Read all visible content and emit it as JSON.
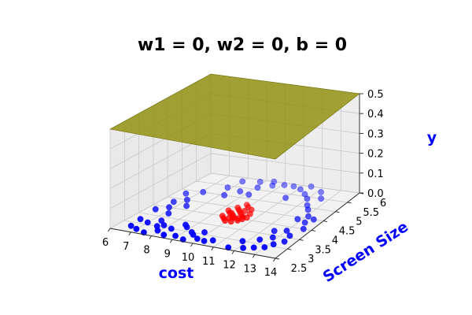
{
  "chart_data": {
    "type": "scatter3d",
    "title": "w1 = 0, w2 = 0, b = 0",
    "xlabel": "cost",
    "ylabel": "Screen Size",
    "zlabel": "y",
    "x_ticks": [
      "6",
      "7",
      "8",
      "9",
      "10",
      "11",
      "12",
      "13",
      "14"
    ],
    "y_ticks": [
      "2.5",
      "3",
      "3.5",
      "4",
      "4.5",
      "5",
      "5.5",
      "6"
    ],
    "z_ticks": [
      "0.0",
      "0.1",
      "0.2",
      "0.3",
      "0.4",
      "0.5"
    ],
    "xlim": [
      6,
      14
    ],
    "ylim": [
      2.5,
      6
    ],
    "zlim": [
      0,
      0.5
    ],
    "grid": true,
    "plane": {
      "z": 0.5,
      "color": "#8b8b00"
    },
    "label_color": "#0000ff",
    "series": [
      {
        "color": "#ff0000",
        "points": [
          [
            9.6,
            4.5,
            0
          ],
          [
            9.8,
            4.4,
            0
          ],
          [
            10.0,
            4.3,
            0
          ],
          [
            10.2,
            4.2,
            0
          ],
          [
            10.4,
            4.1,
            0
          ],
          [
            9.7,
            4.2,
            0
          ],
          [
            9.9,
            4.1,
            0
          ],
          [
            10.1,
            4.0,
            0
          ],
          [
            10.3,
            4.0,
            0
          ],
          [
            10.5,
            4.3,
            0
          ],
          [
            9.5,
            4.0,
            0
          ],
          [
            9.7,
            3.9,
            0
          ],
          [
            9.9,
            3.8,
            0
          ],
          [
            10.2,
            3.8,
            0
          ],
          [
            10.4,
            3.9,
            0
          ],
          [
            10.6,
            4.1,
            0
          ],
          [
            9.4,
            4.3,
            0
          ],
          [
            10.0,
            4.6,
            0
          ],
          [
            10.3,
            4.5,
            0
          ],
          [
            9.8,
            4.7,
            0
          ],
          [
            10.1,
            4.4,
            0
          ],
          [
            9.6,
            4.2,
            0
          ],
          [
            10.0,
            4.0,
            0
          ],
          [
            10.5,
            4.0,
            0
          ],
          [
            9.9,
            3.95,
            0
          ]
        ]
      },
      {
        "color": "#0000ff",
        "points": [
          [
            6.6,
            2.8,
            0
          ],
          [
            7.0,
            2.7,
            0
          ],
          [
            7.5,
            2.6,
            0
          ],
          [
            7.9,
            2.8,
            0
          ],
          [
            8.4,
            2.65,
            0
          ],
          [
            8.9,
            2.7,
            0
          ],
          [
            9.4,
            2.6,
            0
          ],
          [
            9.9,
            2.75,
            0
          ],
          [
            10.3,
            2.7,
            0
          ],
          [
            10.6,
            2.8,
            0
          ],
          [
            6.5,
            3.2,
            0
          ],
          [
            7.0,
            3.1,
            0
          ],
          [
            7.4,
            3.3,
            0
          ],
          [
            7.8,
            3.1,
            0
          ],
          [
            8.3,
            3.0,
            0
          ],
          [
            8.8,
            3.2,
            0
          ],
          [
            9.3,
            3.0,
            0
          ],
          [
            9.8,
            3.1,
            0
          ],
          [
            6.4,
            3.8,
            0
          ],
          [
            6.8,
            4.0,
            0
          ],
          [
            7.2,
            3.7,
            0
          ],
          [
            6.6,
            4.3,
            0
          ],
          [
            7.0,
            4.5,
            0
          ],
          [
            6.5,
            4.8,
            0
          ],
          [
            7.1,
            5.0,
            0
          ],
          [
            7.4,
            4.2,
            0
          ],
          [
            11.6,
            2.6,
            0
          ],
          [
            12.2,
            2.7,
            0
          ],
          [
            12.6,
            2.8,
            0
          ],
          [
            13.0,
            2.9,
            0
          ],
          [
            13.2,
            3.1,
            0
          ],
          [
            11.8,
            3.0,
            0
          ],
          [
            12.4,
            3.2,
            0
          ],
          [
            12.8,
            3.4,
            0
          ],
          [
            13.4,
            3.6,
            0
          ],
          [
            13.5,
            3.3,
            0
          ],
          [
            12.5,
            3.7,
            0
          ],
          [
            13.0,
            3.8,
            0
          ],
          [
            13.6,
            4.0,
            0
          ],
          [
            13.3,
            4.3,
            0
          ],
          [
            13.1,
            4.6,
            0
          ],
          [
            13.5,
            4.5,
            0
          ],
          [
            12.8,
            4.4,
            0
          ],
          [
            8.6,
            5.3,
            0
          ],
          [
            9.1,
            5.6,
            0
          ],
          [
            9.6,
            5.8,
            0
          ],
          [
            10.1,
            5.9,
            0
          ],
          [
            10.6,
            5.9,
            0
          ],
          [
            11.1,
            5.8,
            0
          ],
          [
            11.6,
            5.6,
            0
          ],
          [
            12.0,
            5.4,
            0
          ],
          [
            12.4,
            5.1,
            0
          ],
          [
            12.7,
            4.9,
            0
          ],
          [
            8.2,
            5.0,
            0
          ],
          [
            7.8,
            5.4,
            0
          ],
          [
            8.0,
            5.8,
            0
          ],
          [
            8.8,
            5.9,
            0
          ],
          [
            9.4,
            6.0,
            0
          ],
          [
            11.4,
            6.0,
            0
          ],
          [
            12.2,
            5.8,
            0
          ],
          [
            12.6,
            5.5,
            0
          ],
          [
            11.0,
            5.3,
            0
          ],
          [
            9.2,
            5.2,
            0
          ],
          [
            7.6,
            3.0,
            0
          ],
          [
            8.6,
            3.3,
            0
          ],
          [
            9.5,
            2.9,
            0
          ]
        ]
      }
    ]
  }
}
